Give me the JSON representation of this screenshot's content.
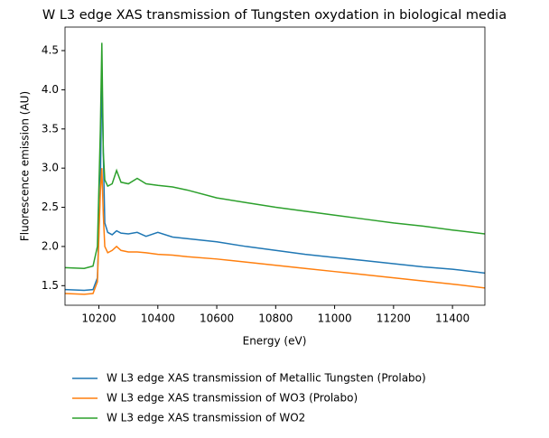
{
  "chart_data": {
    "type": "line",
    "title": "W L3 edge XAS transmission of Tungsten oxydation in biological media",
    "xlabel": "Energy (eV)",
    "ylabel": "Fluorescence emission (AU)",
    "x": [
      10085,
      10150,
      10180,
      10195,
      10205,
      10210,
      10215,
      10220,
      10230,
      10245,
      10260,
      10275,
      10300,
      10330,
      10360,
      10400,
      10450,
      10500,
      10600,
      10700,
      10800,
      10900,
      11000,
      11100,
      11200,
      11300,
      11400,
      11510
    ],
    "series": [
      {
        "name": "W L3 edge XAS transmission of Metallic Tungsten (Prolabo)",
        "color": "#1f77b4",
        "values": [
          1.45,
          1.44,
          1.45,
          1.6,
          2.8,
          4.2,
          3.2,
          2.3,
          2.18,
          2.15,
          2.2,
          2.17,
          2.16,
          2.18,
          2.13,
          2.18,
          2.12,
          2.1,
          2.06,
          2.0,
          1.95,
          1.9,
          1.86,
          1.82,
          1.78,
          1.74,
          1.71,
          1.66
        ]
      },
      {
        "name": "W L3 edge XAS transmission of WO3 (Prolabo)",
        "color": "#ff7f0e",
        "values": [
          1.4,
          1.39,
          1.4,
          1.55,
          2.7,
          3.0,
          2.4,
          2.0,
          1.92,
          1.95,
          2.0,
          1.95,
          1.93,
          1.93,
          1.92,
          1.9,
          1.89,
          1.87,
          1.84,
          1.8,
          1.76,
          1.72,
          1.68,
          1.64,
          1.6,
          1.56,
          1.52,
          1.47
        ]
      },
      {
        "name": "W L3 edge XAS transmission of WO2",
        "color": "#2ca02c",
        "values": [
          1.73,
          1.72,
          1.75,
          2.0,
          3.5,
          4.6,
          3.2,
          2.85,
          2.77,
          2.8,
          2.97,
          2.82,
          2.8,
          2.87,
          2.8,
          2.78,
          2.76,
          2.72,
          2.62,
          2.56,
          2.5,
          2.45,
          2.4,
          2.35,
          2.3,
          2.26,
          2.21,
          2.16
        ]
      }
    ],
    "xlim": [
      10085,
      11510
    ],
    "ylim": [
      1.25,
      4.8
    ],
    "xticks": [
      10200,
      10400,
      10600,
      10800,
      11000,
      11200,
      11400
    ],
    "yticks": [
      1.5,
      {
        "value": 2,
        "label": "2.0"
      },
      2.5,
      {
        "value": 3,
        "label": "3.0"
      },
      3.5,
      {
        "value": 4,
        "label": "4.0"
      },
      4.5
    ],
    "legend": "lower center"
  }
}
